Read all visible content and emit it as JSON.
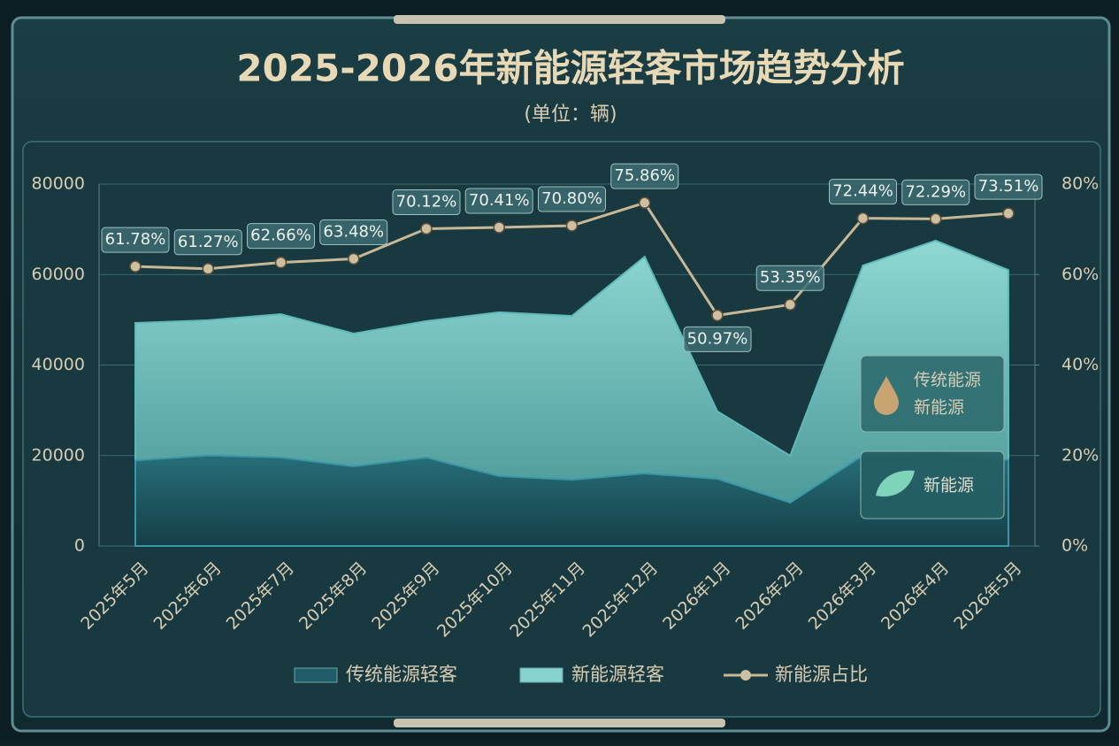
{
  "chart_data": {
    "type": "stacked-area-line",
    "title": "2025-2026年新能源轻客市场趋势分析",
    "subtitle": "(单位：辆)",
    "categories": [
      "2025年5月",
      "2025年6月",
      "2025年7月",
      "2025年8月",
      "2025年9月",
      "2025年10月",
      "2025年11月",
      "2025年12月",
      "2026年1月",
      "2026年2月",
      "2026年3月",
      "2026年4月",
      "2026年5月"
    ],
    "series": [
      {
        "name": "传统能源轻客",
        "color": "#1f5c68",
        "values": [
          18900,
          20000,
          19550,
          17600,
          19550,
          15450,
          14650,
          16050,
          14850,
          9600,
          20000,
          20900,
          19000
        ]
      },
      {
        "name": "新能源轻客",
        "color": "#86d3cf",
        "values": [
          30400,
          29900,
          31700,
          29350,
          30150,
          36200,
          36200,
          47900,
          14900,
          10350,
          42000,
          46600,
          42000
        ]
      },
      {
        "name": "新能源占比",
        "color": "#c9b896",
        "axis": "y2",
        "values": [
          61.78,
          61.27,
          62.66,
          63.48,
          70.12,
          70.41,
          70.8,
          75.86,
          50.97,
          53.35,
          72.44,
          72.29,
          73.51
        ],
        "value_labels": [
          "61.78%",
          "61.27%",
          "62.66%",
          "63.48%",
          "70.12%",
          "70.41%",
          "70.80%",
          "75.86%",
          "50.97%",
          "53.35%",
          "72.44%",
          "72.29%",
          "73.51%"
        ]
      }
    ],
    "ylim": [
      0,
      80000
    ],
    "yticks": [
      0,
      20000,
      40000,
      60000,
      80000
    ],
    "y2lim": [
      0,
      80
    ],
    "y2ticks": [
      {
        "value": 0,
        "label": "0%"
      },
      {
        "value": 20,
        "label": "20%"
      },
      {
        "value": 40,
        "label": "40%"
      },
      {
        "value": 60,
        "label": "60%"
      },
      {
        "value": 80,
        "label": "80%"
      }
    ],
    "grid": true,
    "badges": [
      "传统能源",
      "新能源",
      "新能源"
    ]
  }
}
